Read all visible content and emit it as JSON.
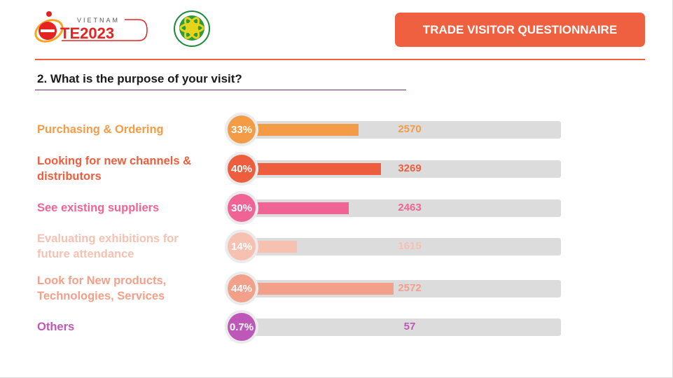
{
  "header": {
    "logo_text": "VIETNAM ETE2023",
    "seal_text": "Tiết kiệm năng lượng - Phát triển bền vững",
    "title_button": "TRADE VISITOR QUESTIONNAIRE"
  },
  "question": "2. What is the purpose of your visit?",
  "chart_data": {
    "type": "bar",
    "title": "2. What is the purpose of your visit?",
    "categories": [
      "Purchasing & Ordering",
      "Looking for new channels & distributors",
      "See existing suppliers",
      "Evaluating exhibitions for future attendance",
      "Look for New products, Technologies, Services",
      "Others"
    ],
    "percent_labels": [
      "33%",
      "40%",
      "30%",
      "14%",
      "44%",
      "0.7%"
    ],
    "percents": [
      33,
      40,
      30,
      14,
      44,
      0.7
    ],
    "values": [
      2570,
      3269,
      2463,
      1615,
      2572,
      57
    ],
    "colors": [
      "#F39C45",
      "#EC5E3D",
      "#EF6494",
      "#F6C1B1",
      "#F3A08A",
      "#BE58B8"
    ]
  },
  "rows": [
    {
      "label": "Purchasing & Ordering",
      "pct": "33%",
      "count": "2570"
    },
    {
      "label": "Looking for new channels & distributors",
      "pct": "40%",
      "count": "3269"
    },
    {
      "label": "See existing suppliers",
      "pct": "30%",
      "count": "2463"
    },
    {
      "label": "Evaluating exhibitions for future attendance",
      "pct": "14%",
      "count": "1615"
    },
    {
      "label": "Look for New products, Technologies, Services",
      "pct": "44%",
      "count": "2572"
    },
    {
      "label": "Others",
      "pct": "0.7%",
      "count": "57"
    }
  ]
}
